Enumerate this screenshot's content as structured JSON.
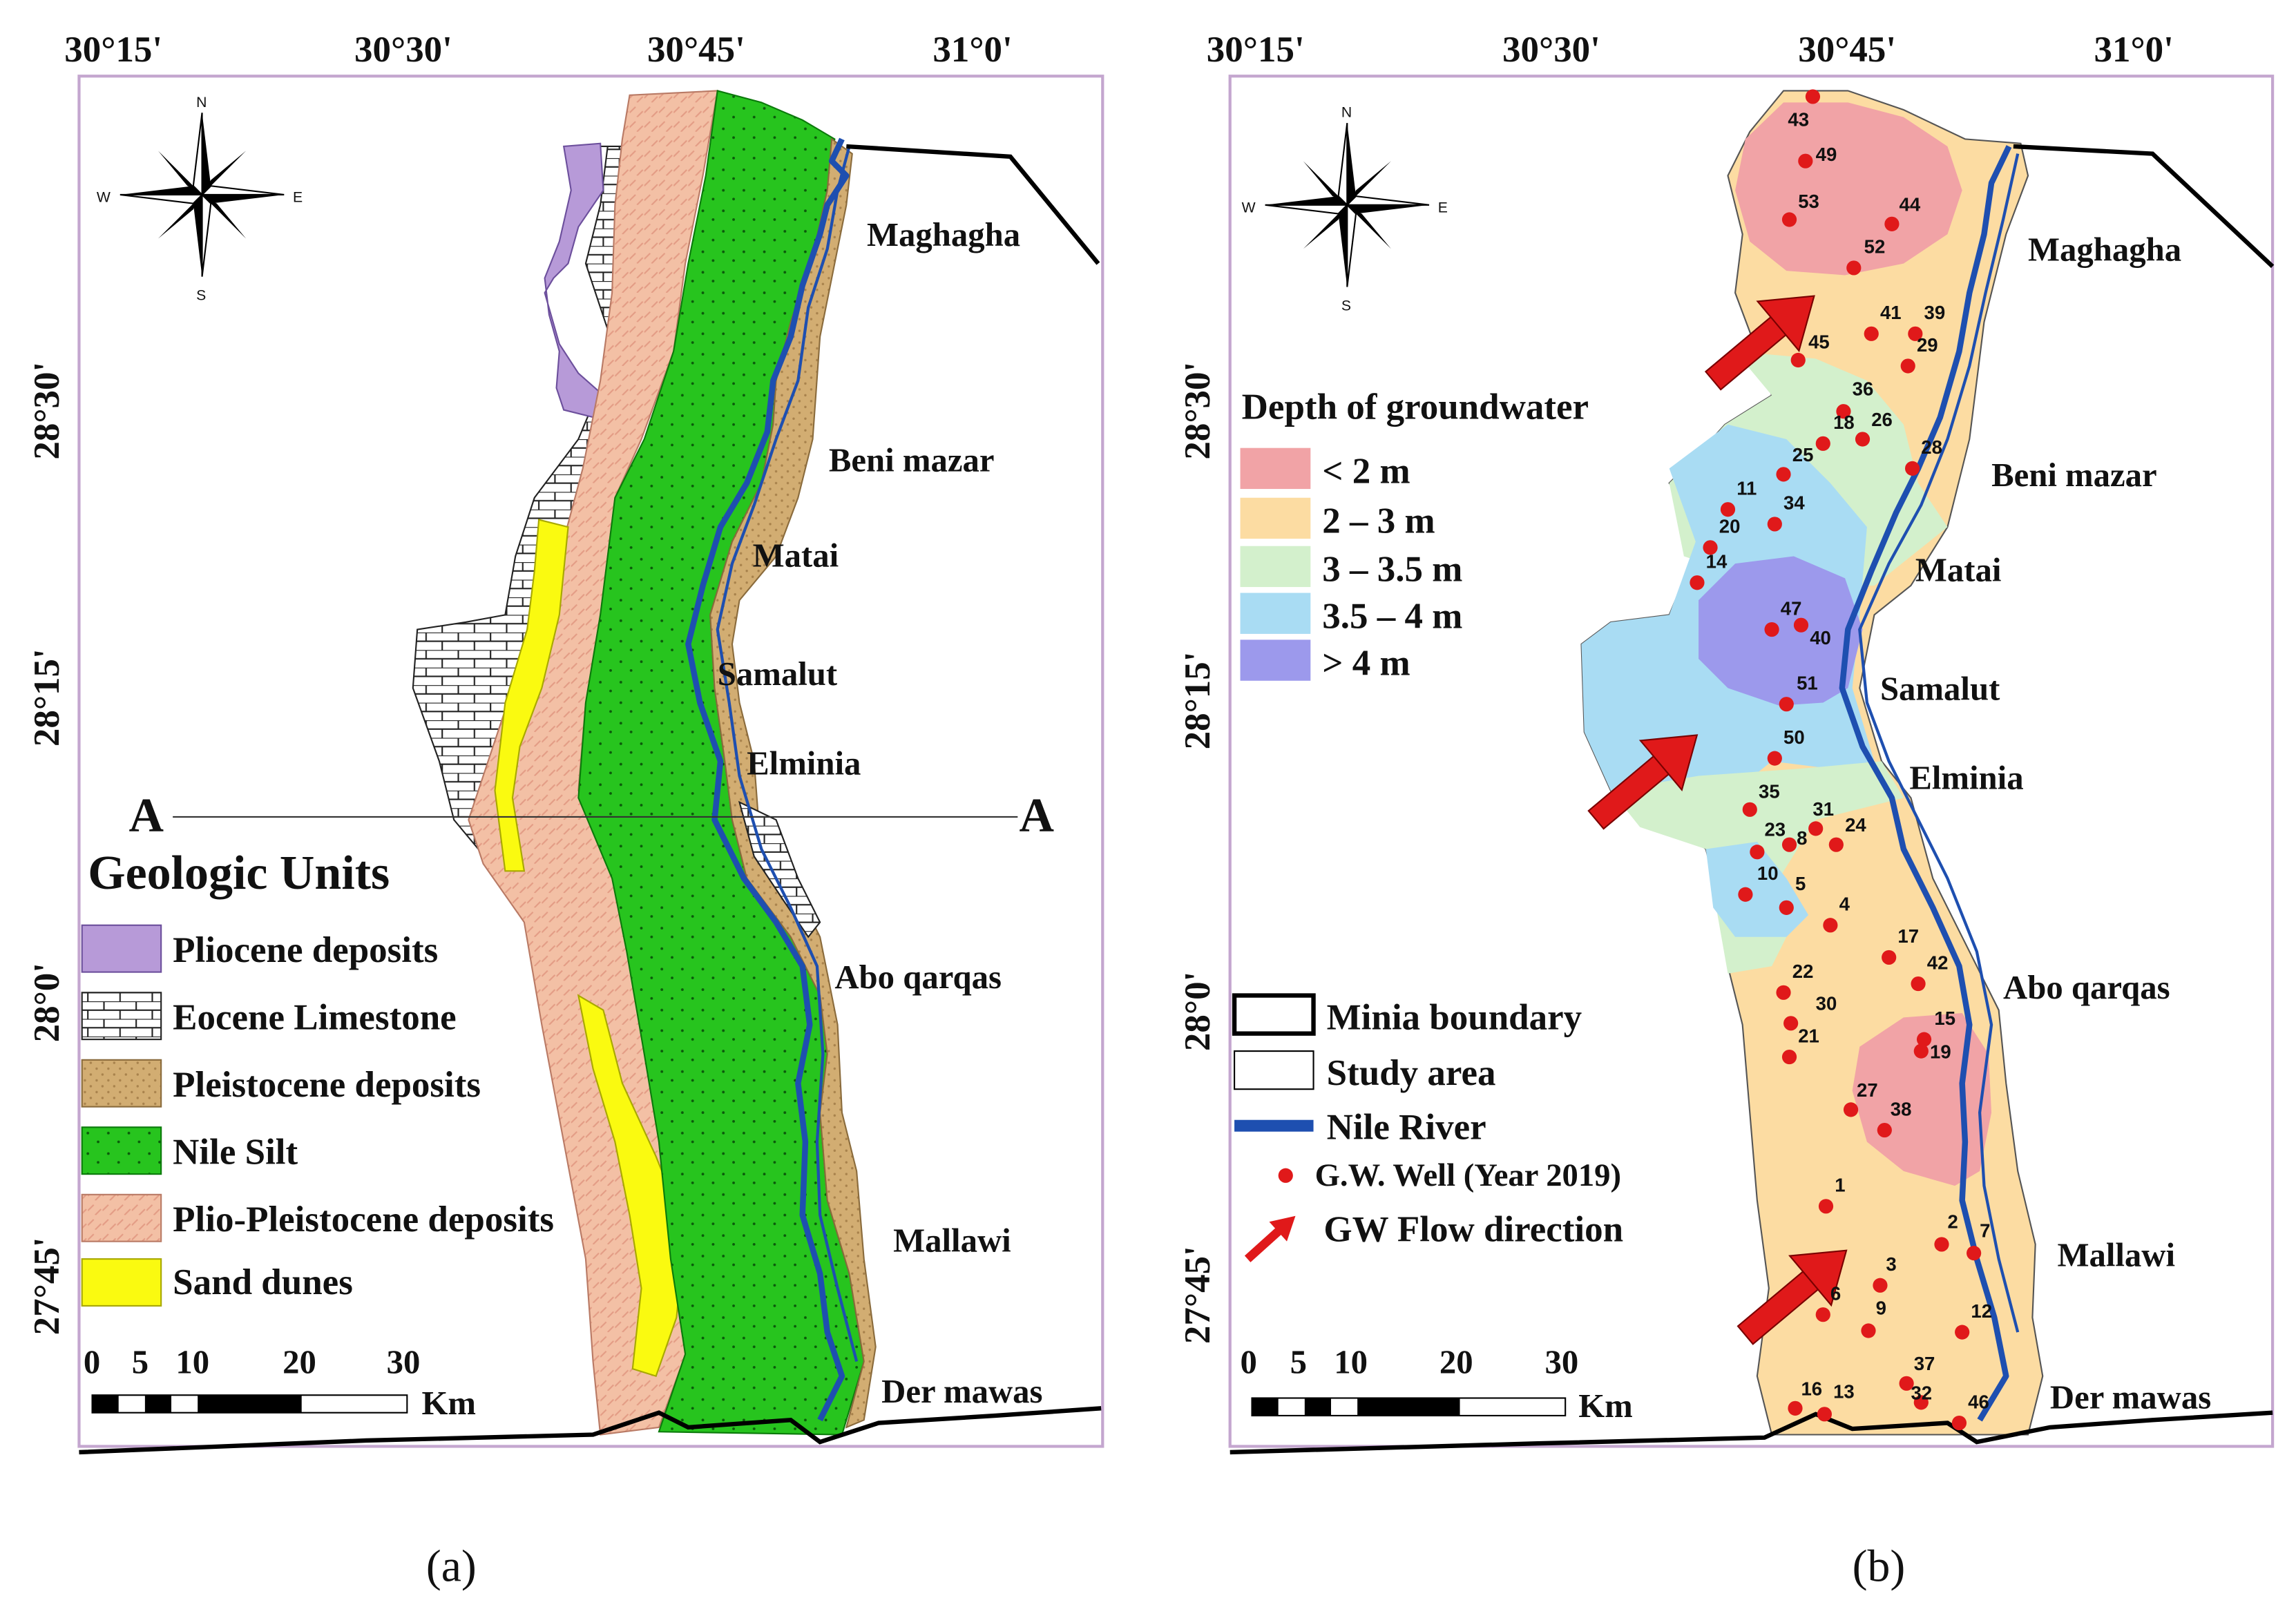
{
  "panel_a": {
    "caption": "(a)",
    "top_coords": [
      "30°15'",
      "30°30'",
      "30°45'",
      "31°0'"
    ],
    "left_coords": [
      "28°30'",
      "28°15'",
      "28°0'",
      "27°45'"
    ],
    "towns": [
      "Maghagha",
      "Beni mazar",
      "Matai",
      "Samalut",
      "Elminia",
      "Abo qarqas",
      "Mallawi",
      "Der mawas"
    ],
    "section_label": "A",
    "legend_title": "Geologic Units",
    "legend": [
      {
        "label": "Pliocene deposits",
        "color": "#b79ad8"
      },
      {
        "label": "Eocene Limestone",
        "color": "#ffffff"
      },
      {
        "label": "Pleistocene deposits",
        "color": "#d2ad72"
      },
      {
        "label": "Nile Silt",
        "color": "#27c41e"
      },
      {
        "label": "Plio-Pleistocene deposits",
        "color": "#f3c0a5"
      },
      {
        "label": "Sand dunes",
        "color": "#fafa10"
      }
    ],
    "scale_ticks": [
      "0",
      "5",
      "10",
      "20",
      "30"
    ],
    "scale_unit": "Km",
    "compass": [
      "N",
      "E",
      "S",
      "W"
    ]
  },
  "panel_b": {
    "caption": "(b)",
    "top_coords": [
      "30°15'",
      "30°30'",
      "30°45'",
      "31°0'"
    ],
    "left_coords": [
      "28°30'",
      "28°15'",
      "28°0'",
      "27°45'"
    ],
    "towns": [
      "Maghagha",
      "Beni mazar",
      "Matai",
      "Samalut",
      "Elminia",
      "Abo qarqas",
      "Mallawi",
      "Der mawas"
    ],
    "legend_title": "Depth of groundwater",
    "depth_legend": [
      {
        "label": "< 2 m",
        "color": "#f1a3a6"
      },
      {
        "label": "2 – 3 m",
        "color": "#fcdca2"
      },
      {
        "label": "3 – 3.5 m",
        "color": "#d3f0cc"
      },
      {
        "label": "3.5 – 4 m",
        "color": "#a9dcf3"
      },
      {
        "label": "> 4 m",
        "color": "#9c99ec"
      }
    ],
    "symbol_legend": [
      "Minia boundary",
      "Study area",
      "Nile River",
      "G.W. Well (Year 2019)",
      "GW Flow direction"
    ],
    "scale_ticks": [
      "0",
      "5",
      "10",
      "20",
      "30"
    ],
    "scale_unit": "Km",
    "compass": [
      "N",
      "E",
      "S",
      "W"
    ],
    "wells": [
      "43",
      "49",
      "53",
      "44",
      "52",
      "41",
      "39",
      "29",
      "45",
      "36",
      "18",
      "26",
      "28",
      "25",
      "11",
      "34",
      "20",
      "14",
      "47",
      "40",
      "51",
      "50",
      "35",
      "31",
      "23",
      "8",
      "24",
      "10",
      "5",
      "4",
      "17",
      "42",
      "22",
      "30",
      "21",
      "15",
      "19",
      "27",
      "38",
      "1",
      "2",
      "7",
      "3",
      "6",
      "9",
      "12",
      "37",
      "32",
      "16",
      "13",
      "46"
    ]
  },
  "colors": {
    "nile_river": "#1e4fb0",
    "well": "#e0191a",
    "flow_arrow": "#e0191a",
    "boundary": "#000000",
    "frame": "#c4a6cf"
  }
}
